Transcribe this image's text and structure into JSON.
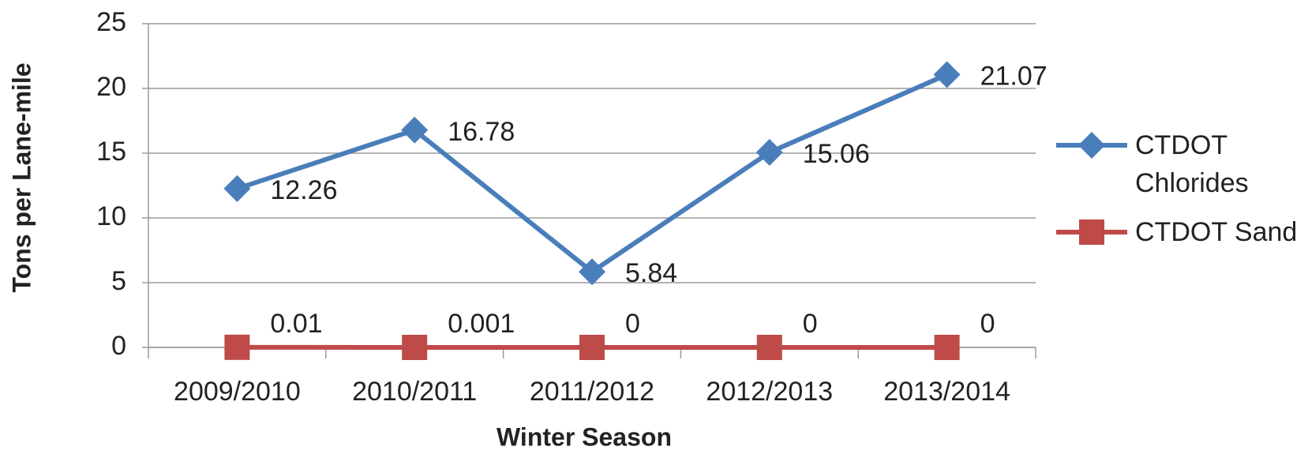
{
  "chart_data": {
    "type": "line",
    "x_label": "Winter Season",
    "y_label": "Tons per Lane-mile",
    "categories": [
      "2009/2010",
      "2010/2011",
      "2011/2012",
      "2012/2013",
      "2013/2014"
    ],
    "series": [
      {
        "name": "CTDOT Chlorides",
        "color": "#4a7ebb",
        "marker": "diamond",
        "values": [
          12.26,
          16.78,
          5.84,
          15.06,
          21.07
        ]
      },
      {
        "name": "CTDOT Sand",
        "color": "#be4b48",
        "marker": "square",
        "values": [
          0.01,
          0.001,
          0,
          0,
          0
        ]
      }
    ],
    "ylim": [
      0,
      25
    ],
    "yticks": [
      0,
      5,
      10,
      15,
      20,
      25
    ],
    "grid": true,
    "legend": "right"
  }
}
